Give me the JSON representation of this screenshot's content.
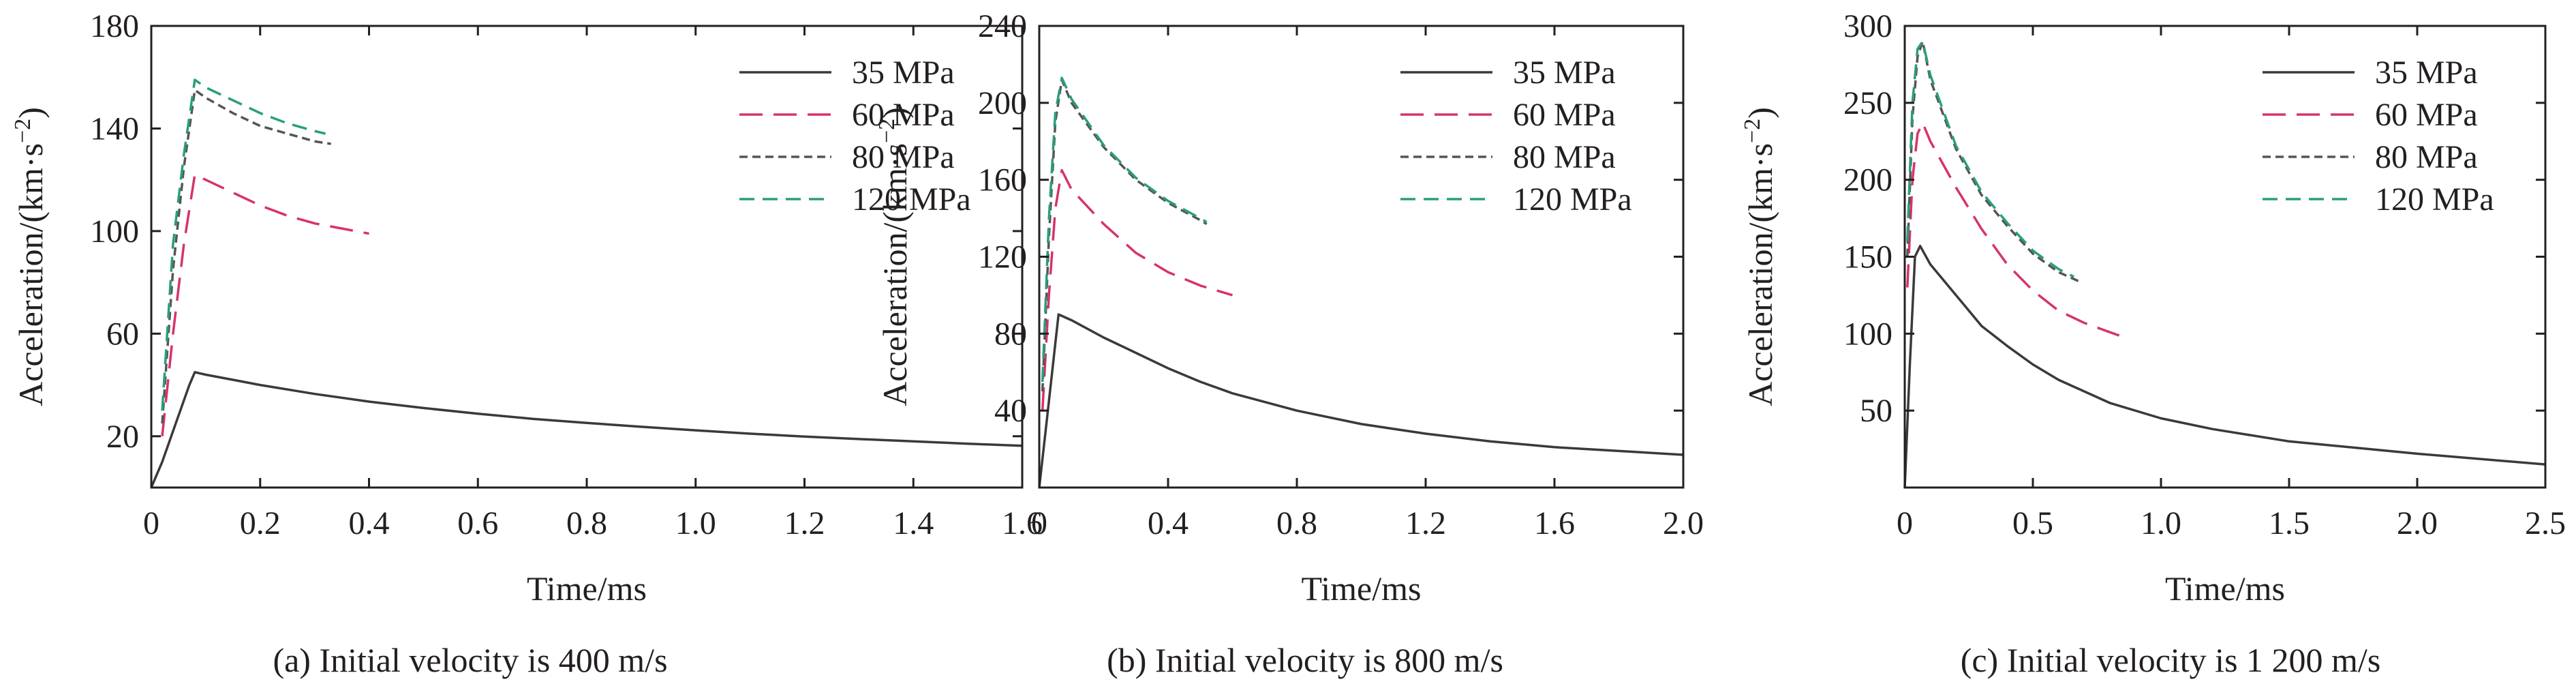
{
  "colors": {
    "35 MPa": "#3a3a3a",
    "60 MPa": "#d6336c",
    "80 MPa": "#555555",
    "120 MPa": "#2a9d7f"
  },
  "dashes": {
    "35 MPa": "",
    "60 MPa": "34 16",
    "80 MPa": "12 7",
    "120 MPa": "22 12"
  },
  "chart_data": [
    {
      "type": "line",
      "caption": "(a) Initial velocity is 400 m/s",
      "xlabel": "Time/ms",
      "ylabel": "Acceleration/(km·s",
      "ylabel_sup": "−2",
      "ylabel_end": ")",
      "xlim": [
        0,
        1.6
      ],
      "ylim": [
        0,
        180
      ],
      "xticks": [
        0,
        0.2,
        0.4,
        0.6,
        0.8,
        1.0,
        1.2,
        1.4,
        1.6
      ],
      "xtick_labels": [
        "0",
        "0.2",
        "0.4",
        "0.6",
        "0.8",
        "1.0",
        "1.2",
        "1.4",
        "1.6"
      ],
      "yticks": [
        20,
        60,
        100,
        140,
        180
      ],
      "ytick_labels": [
        "20",
        "60",
        "100",
        "140",
        "180"
      ],
      "legend": "top-right",
      "series": [
        {
          "name": "35 MPa",
          "x": [
            0,
            0.01,
            0.02,
            0.03,
            0.04,
            0.05,
            0.06,
            0.07,
            0.08,
            0.1,
            0.15,
            0.2,
            0.3,
            0.4,
            0.5,
            0.6,
            0.7,
            0.8,
            0.9,
            1.0,
            1.1,
            1.2,
            1.3,
            1.4,
            1.5,
            1.6
          ],
          "y": [
            0,
            5,
            10,
            16,
            22,
            28,
            34,
            40,
            45,
            44,
            42,
            40,
            36.5,
            33.5,
            31,
            28.8,
            26.8,
            25.2,
            23.7,
            22.3,
            21,
            19.9,
            18.9,
            18,
            17.1,
            16.3
          ]
        },
        {
          "name": "60 MPa",
          "x": [
            0.02,
            0.04,
            0.06,
            0.08,
            0.1,
            0.15,
            0.2,
            0.25,
            0.3,
            0.35,
            0.4
          ],
          "y": [
            20,
            60,
            95,
            122,
            120,
            115,
            110,
            106,
            103,
            101,
            99
          ]
        },
        {
          "name": "80 MPa",
          "x": [
            0.02,
            0.04,
            0.06,
            0.08,
            0.1,
            0.15,
            0.2,
            0.25,
            0.3,
            0.33
          ],
          "y": [
            25,
            85,
            125,
            155,
            152,
            146,
            141,
            138,
            135,
            134
          ]
        },
        {
          "name": "120 MPa",
          "x": [
            0.02,
            0.04,
            0.06,
            0.08,
            0.1,
            0.15,
            0.2,
            0.25,
            0.3,
            0.32
          ],
          "y": [
            30,
            95,
            130,
            159,
            156,
            151,
            146,
            142,
            139,
            138
          ]
        }
      ]
    },
    {
      "type": "line",
      "caption": "(b) Initial velocity is 800 m/s",
      "xlabel": "Time/ms",
      "ylabel": "Acceleration/(km·s",
      "ylabel_sup": "−2",
      "ylabel_end": ")",
      "xlim": [
        0,
        2.0
      ],
      "ylim": [
        0,
        240
      ],
      "xticks": [
        0,
        0.4,
        0.8,
        1.2,
        1.6,
        2.0
      ],
      "xtick_labels": [
        "0",
        "0.4",
        "0.8",
        "1.2",
        "1.6",
        "2.0"
      ],
      "yticks": [
        40,
        80,
        120,
        160,
        200,
        240
      ],
      "ytick_labels": [
        "40",
        "80",
        "120",
        "160",
        "200",
        "240"
      ],
      "legend": "top-right",
      "series": [
        {
          "name": "35 MPa",
          "x": [
            0,
            0.02,
            0.04,
            0.06,
            0.1,
            0.2,
            0.3,
            0.4,
            0.5,
            0.6,
            0.8,
            1.0,
            1.2,
            1.4,
            1.6,
            1.8,
            2.0
          ],
          "y": [
            0,
            30,
            60,
            90,
            87,
            78,
            70,
            62,
            55,
            49,
            40,
            33,
            28,
            24,
            21,
            19,
            17
          ]
        },
        {
          "name": "60 MPa",
          "x": [
            0.01,
            0.03,
            0.05,
            0.07,
            0.1,
            0.2,
            0.3,
            0.4,
            0.5,
            0.6
          ],
          "y": [
            40,
            100,
            145,
            165,
            155,
            137,
            122,
            112,
            105,
            100
          ]
        },
        {
          "name": "80 MPa",
          "x": [
            0.01,
            0.03,
            0.05,
            0.07,
            0.1,
            0.2,
            0.3,
            0.4,
            0.5,
            0.52
          ],
          "y": [
            50,
            130,
            190,
            212,
            200,
            177,
            160,
            148,
            139,
            137
          ]
        },
        {
          "name": "120 MPa",
          "x": [
            0.01,
            0.03,
            0.05,
            0.07,
            0.1,
            0.2,
            0.3,
            0.4,
            0.5,
            0.52
          ],
          "y": [
            55,
            140,
            195,
            213,
            202,
            178,
            161,
            149,
            140,
            138
          ]
        }
      ]
    },
    {
      "type": "line",
      "caption": "(c) Initial velocity is 1 200 m/s",
      "xlabel": "Time/ms",
      "ylabel": "Acceleration/(km·s",
      "ylabel_sup": "−2",
      "ylabel_end": ")",
      "xlim": [
        0,
        2.5
      ],
      "ylim": [
        0,
        300
      ],
      "xticks": [
        0,
        0.5,
        1.0,
        1.5,
        2.0,
        2.5
      ],
      "xtick_labels": [
        "0",
        "0.5",
        "1.0",
        "1.5",
        "2.0",
        "2.5"
      ],
      "yticks": [
        50,
        100,
        150,
        200,
        250,
        300
      ],
      "ytick_labels": [
        "50",
        "100",
        "150",
        "200",
        "250",
        "300"
      ],
      "legend": "top-right",
      "series": [
        {
          "name": "35 MPa",
          "x": [
            0,
            0.02,
            0.04,
            0.06,
            0.1,
            0.2,
            0.3,
            0.4,
            0.5,
            0.6,
            0.8,
            1.0,
            1.2,
            1.5,
            2.0,
            2.5
          ],
          "y": [
            0,
            80,
            150,
            157,
            145,
            125,
            105,
            92,
            80,
            70,
            55,
            45,
            38,
            30,
            22,
            15
          ]
        },
        {
          "name": "60 MPa",
          "x": [
            0.01,
            0.03,
            0.05,
            0.07,
            0.1,
            0.2,
            0.3,
            0.4,
            0.5,
            0.6,
            0.7,
            0.8,
            0.85
          ],
          "y": [
            130,
            200,
            230,
            237,
            225,
            195,
            168,
            145,
            128,
            115,
            107,
            101,
            98
          ]
        },
        {
          "name": "80 MPa",
          "x": [
            0.01,
            0.03,
            0.05,
            0.07,
            0.1,
            0.2,
            0.3,
            0.4,
            0.5,
            0.6,
            0.68
          ],
          "y": [
            150,
            240,
            280,
            290,
            265,
            220,
            190,
            170,
            152,
            140,
            134
          ]
        },
        {
          "name": "120 MPa",
          "x": [
            0.01,
            0.03,
            0.05,
            0.07,
            0.1,
            0.2,
            0.3,
            0.4,
            0.5,
            0.6,
            0.66
          ],
          "y": [
            160,
            250,
            285,
            290,
            268,
            222,
            192,
            172,
            154,
            142,
            137
          ]
        }
      ]
    }
  ]
}
